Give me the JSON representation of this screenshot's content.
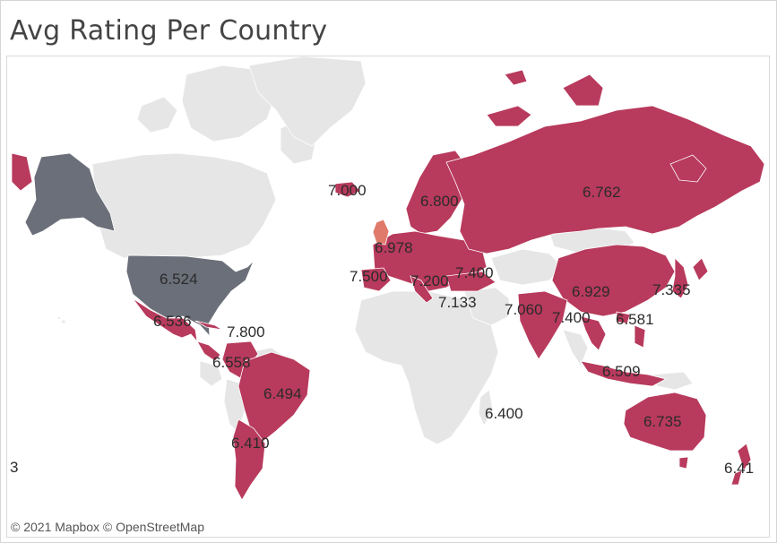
{
  "title": "Avg Rating Per Country",
  "attribution": "© 2021 Mapbox © OpenStreetMap",
  "colors": {
    "rated": "#b83a5c",
    "highlight": "#e07a6a",
    "usa": "#6b6f79",
    "unrated": "#e6e6e6",
    "ocean": "#ffffff",
    "border": "#ffffff"
  },
  "labels": [
    {
      "country": "Iceland",
      "value": "7.000"
    },
    {
      "country": "Scandinavia",
      "value": "6.800"
    },
    {
      "country": "Russia",
      "value": "6.762"
    },
    {
      "country": "United Kingdom",
      "value": "6.978"
    },
    {
      "country": "Spain",
      "value": "7.500"
    },
    {
      "country": "Italy",
      "value": "7.200"
    },
    {
      "country": "Turkey",
      "value": "7.400"
    },
    {
      "country": "Middle East",
      "value": "7.133"
    },
    {
      "country": "India",
      "value": "7.060"
    },
    {
      "country": "China",
      "value": "6.929"
    },
    {
      "country": "Japan",
      "value": "7.335"
    },
    {
      "country": "Thailand",
      "value": "7.400"
    },
    {
      "country": "Hong Kong",
      "value": "6.581"
    },
    {
      "country": "Indonesia",
      "value": "6.509"
    },
    {
      "country": "Australia",
      "value": "6.735"
    },
    {
      "country": "New Zealand",
      "value": "6.41"
    },
    {
      "country": "Mauritius",
      "value": "6.400"
    },
    {
      "country": "United States",
      "value": "6.524"
    },
    {
      "country": "Mexico",
      "value": "6.536"
    },
    {
      "country": "Cuba",
      "value": "7.800"
    },
    {
      "country": "Colombia",
      "value": "6.558"
    },
    {
      "country": "Brazil",
      "value": "6.494"
    },
    {
      "country": "Argentina",
      "value": "6.410"
    },
    {
      "country": "Left edge",
      "value": "3"
    }
  ]
}
